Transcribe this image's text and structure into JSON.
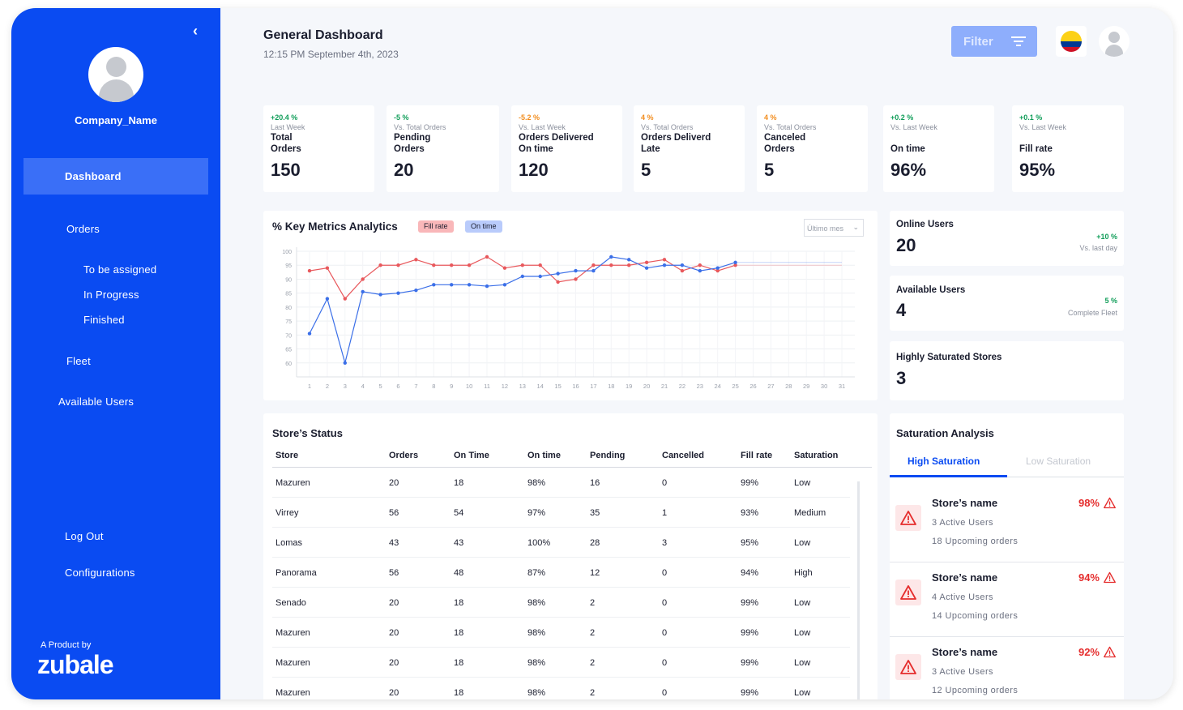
{
  "sidebar": {
    "collapse_icon": "chevron-left-icon",
    "company_name": "Company_Name",
    "nav": {
      "dashboard": "Dashboard",
      "orders": "Orders",
      "to_be_assigned": "To be assigned",
      "in_progress": "In Progress",
      "finished": "Finished",
      "fleet": "Fleet",
      "available_users": "Available Users",
      "log_out": "Log Out",
      "configurations": "Configurations"
    },
    "product_by": "A Product by",
    "brand": "zubale",
    "color": "#0a4bf2"
  },
  "header": {
    "title": "General Dashboard",
    "date": "12:15 PM September 4th, 2023",
    "filter_label": "Filter",
    "country_flag": "colombia-flag"
  },
  "kpis": [
    {
      "delta": "+20.4 %",
      "delta_color": "#0f9d58",
      "sub": "Last Week",
      "label": "Total\nOrders",
      "value": "150"
    },
    {
      "delta": "-5 %",
      "delta_color": "#0f9d58",
      "sub": "Vs. Total Orders",
      "label": "Pending\nOrders",
      "value": "20"
    },
    {
      "delta": "-5.2 %",
      "delta_color": "#f28c1c",
      "sub": "Vs. Last Week",
      "label": "Orders Delivered\nOn time",
      "value": "120"
    },
    {
      "delta": "4 %",
      "delta_color": "#f28c1c",
      "sub": "Vs. Total Orders",
      "label": "Orders Deliverd\nLate",
      "value": "5"
    },
    {
      "delta": "4 %",
      "delta_color": "#f28c1c",
      "sub": "Vs. Total Orders",
      "label": "Canceled\nOrders",
      "value": "5"
    },
    {
      "delta": "+0.2 %",
      "delta_color": "#0f9d58",
      "sub": "Vs. Last Week",
      "label": "On time",
      "value": "96%"
    },
    {
      "delta": "+0.1 %",
      "delta_color": "#0f9d58",
      "sub": "Vs. Last Week",
      "label": "Fill rate",
      "value": "95%"
    }
  ],
  "chart_card": {
    "title": "% Key Metrics Analytics",
    "legend_fill": "Fill rate",
    "legend_on_time": "On time",
    "period": "Último mes"
  },
  "chart_data": {
    "type": "line",
    "x": [
      1,
      2,
      3,
      4,
      5,
      6,
      7,
      8,
      9,
      10,
      11,
      12,
      13,
      14,
      15,
      16,
      17,
      18,
      19,
      20,
      21,
      22,
      23,
      24,
      25,
      26,
      27,
      28,
      29,
      30,
      31
    ],
    "ylim": [
      55,
      100
    ],
    "yticks": [
      60,
      65,
      70,
      75,
      80,
      85,
      90,
      95,
      100
    ],
    "grid": true,
    "series": [
      {
        "name": "Fill rate",
        "color": "#e8585c",
        "values": [
          93,
          94,
          83,
          90,
          95,
          95,
          97,
          95,
          95,
          95,
          98,
          94,
          95,
          95,
          89,
          90,
          95,
          95,
          95,
          96,
          97,
          93,
          95,
          93,
          95,
          null,
          null,
          null,
          null,
          null,
          null
        ],
        "projection": [
          95,
          95,
          95,
          95,
          95,
          95,
          95
        ]
      },
      {
        "name": "On time",
        "color": "#3b6fe8",
        "values": [
          70.5,
          83,
          60,
          85.5,
          84.5,
          85,
          86,
          88,
          88,
          88,
          87.5,
          88,
          91,
          91,
          92,
          93,
          93,
          98,
          97,
          94,
          95,
          95,
          93,
          94,
          96,
          null,
          null,
          null,
          null,
          null,
          null
        ],
        "projection": [
          96,
          96,
          96,
          96,
          96,
          96,
          96
        ]
      }
    ]
  },
  "online_users": {
    "title": "Online Users",
    "value": "20",
    "delta": "+10 %",
    "sub": "Vs. last day"
  },
  "available_users": {
    "title": "Available Users",
    "value": "4",
    "delta": "5 %",
    "sub": "Complete Fleet"
  },
  "saturated_stores": {
    "title": "Highly Saturated Stores",
    "value": "3"
  },
  "store_status": {
    "title": "Store’s Status",
    "columns": [
      "Store",
      "Orders",
      "On Time",
      "On time",
      "Pending",
      "Cancelled",
      "Fill rate",
      "Saturation"
    ],
    "rows": [
      [
        "Mazuren",
        "20",
        "18",
        "98%",
        "16",
        "0",
        "99%",
        "Low"
      ],
      [
        "Virrey",
        "56",
        "54",
        "97%",
        "35",
        "1",
        "93%",
        "Medium"
      ],
      [
        "Lomas",
        "43",
        "43",
        "100%",
        "28",
        "3",
        "95%",
        "Low"
      ],
      [
        "Panorama",
        "56",
        "48",
        "87%",
        "12",
        "0",
        "94%",
        "High"
      ],
      [
        "Senado",
        "20",
        "18",
        "98%",
        "2",
        "0",
        "99%",
        "Low"
      ],
      [
        "Mazuren",
        "20",
        "18",
        "98%",
        "2",
        "0",
        "99%",
        "Low"
      ],
      [
        "Mazuren",
        "20",
        "18",
        "98%",
        "2",
        "0",
        "99%",
        "Low"
      ],
      [
        "Mazuren",
        "20",
        "18",
        "98%",
        "2",
        "0",
        "99%",
        "Low"
      ]
    ]
  },
  "saturation": {
    "title": "Saturation Analysis",
    "tab_high": "High Saturation",
    "tab_low": "Low Saturation",
    "items": [
      {
        "name": "Store’s name",
        "users": "3 Active Users",
        "orders": "18 Upcoming orders",
        "pct": "98%"
      },
      {
        "name": "Store’s name",
        "users": "4 Active Users",
        "orders": "14 Upcoming orders",
        "pct": "94%"
      },
      {
        "name": "Store’s name",
        "users": "3 Active Users",
        "orders": "12 Upcoming orders",
        "pct": "92%"
      }
    ]
  }
}
